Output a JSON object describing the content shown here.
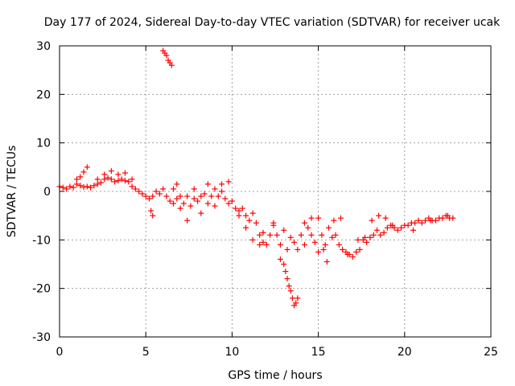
{
  "chart_data": {
    "type": "scatter",
    "title": "Day 177 of 2024, Sidereal Day-to-day VTEC variation (SDTVAR) for receiver ucak",
    "xlabel": "GPS time / hours",
    "ylabel": "SDTVAR / TECUs",
    "xlim": [
      0,
      25
    ],
    "ylim": [
      -30,
      30
    ],
    "xticks": [
      0,
      5,
      10,
      15,
      20,
      25
    ],
    "yticks": [
      -30,
      -20,
      -10,
      0,
      10,
      20,
      30
    ],
    "grid": true,
    "marker": "+",
    "color": "#ff0000",
    "series": [
      {
        "name": "SDTVAR",
        "x": [
          0.0,
          0.2,
          0.4,
          0.6,
          0.8,
          1.0,
          1.2,
          1.4,
          1.6,
          1.8,
          2.0,
          2.2,
          2.4,
          2.6,
          2.8,
          3.0,
          3.2,
          3.4,
          3.6,
          3.8,
          4.0,
          4.2,
          4.4,
          4.6,
          4.8,
          5.0,
          5.2,
          5.4,
          5.6,
          5.8,
          6.0,
          6.2,
          6.4,
          6.6,
          6.8,
          7.0,
          7.2,
          7.4,
          7.6,
          7.8,
          8.0,
          8.2,
          8.4,
          8.6,
          8.8,
          9.0,
          9.2,
          9.4,
          9.6,
          9.8,
          10.0,
          10.2,
          10.4,
          10.6,
          10.8,
          11.0,
          11.2,
          11.4,
          11.6,
          11.8,
          12.0,
          12.2,
          12.4,
          12.6,
          12.8,
          13.0,
          13.2,
          13.4,
          13.6,
          13.8,
          14.0,
          14.2,
          14.4,
          14.6,
          14.8,
          15.0,
          15.2,
          15.4,
          15.6,
          15.8,
          16.0,
          16.2,
          16.4,
          16.6,
          16.8,
          17.0,
          17.2,
          17.4,
          17.6,
          17.8,
          18.0,
          18.2,
          18.4,
          18.6,
          18.8,
          19.0,
          19.2,
          19.4,
          19.6,
          19.8,
          20.0,
          20.2,
          20.4,
          20.6,
          20.8,
          21.0,
          21.2,
          21.4,
          21.6,
          21.8,
          22.0,
          22.2,
          22.4,
          22.6,
          22.8,
          1.0,
          1.2,
          1.4,
          1.6,
          2.2,
          2.6,
          3.0,
          3.4,
          3.8,
          4.2,
          6.0,
          6.1,
          6.2,
          6.3,
          6.4,
          6.5,
          5.3,
          5.4,
          6.6,
          6.8,
          7.0,
          7.4,
          7.8,
          8.2,
          8.6,
          9.0,
          9.4,
          9.8,
          10.4,
          10.8,
          11.2,
          11.6,
          11.8,
          12.4,
          12.8,
          13.0,
          13.1,
          13.2,
          13.3,
          13.4,
          13.5,
          13.6,
          13.7,
          13.8,
          14.2,
          14.6,
          15.0,
          15.3,
          15.5,
          15.9,
          16.3,
          16.7,
          17.3,
          17.7,
          18.1,
          18.5,
          18.9,
          19.3,
          20.5,
          21.5,
          22.5
        ],
        "y": [
          1.0,
          0.8,
          0.5,
          1.0,
          0.8,
          1.5,
          1.2,
          0.9,
          1.0,
          0.8,
          1.2,
          1.5,
          1.8,
          2.5,
          2.8,
          2.5,
          2.0,
          2.2,
          2.5,
          2.2,
          2.0,
          1.0,
          0.5,
          0.0,
          -0.5,
          -1.0,
          -1.5,
          -1.0,
          0.0,
          -0.5,
          0.5,
          -1.0,
          -2.0,
          0.5,
          -1.5,
          -1.0,
          -2.5,
          -1.0,
          -3.0,
          -1.5,
          -2.0,
          -1.0,
          -0.5,
          -2.5,
          -1.0,
          0.5,
          -1.0,
          0.0,
          -1.5,
          -2.5,
          -2.0,
          -3.5,
          -4.0,
          -3.5,
          -5.0,
          -6.0,
          -4.5,
          -6.5,
          -9.0,
          -10.5,
          -11.0,
          -9.0,
          -7.0,
          -9.0,
          -11.0,
          -8.0,
          -12.0,
          -9.5,
          -10.5,
          -12.0,
          -9.0,
          -11.0,
          -7.5,
          -9.0,
          -10.5,
          -12.5,
          -9.0,
          -11.0,
          -7.5,
          -9.5,
          -9.0,
          -11.0,
          -12.0,
          -12.5,
          -13.0,
          -13.5,
          -12.5,
          -12.0,
          -10.0,
          -10.5,
          -9.5,
          -9.0,
          -8.0,
          -9.0,
          -8.5,
          -7.5,
          -7.0,
          -7.5,
          -8.0,
          -7.5,
          -7.0,
          -7.0,
          -6.5,
          -6.5,
          -6.0,
          -6.5,
          -6.0,
          -5.5,
          -6.0,
          -6.0,
          -5.5,
          -5.5,
          -5.0,
          -5.5,
          -5.5,
          2.5,
          3.0,
          4.0,
          5.0,
          2.5,
          3.5,
          4.2,
          3.5,
          3.8,
          2.5,
          29.0,
          28.5,
          28.0,
          27.0,
          26.5,
          26.0,
          -4.0,
          -5.0,
          -2.5,
          1.5,
          -3.5,
          -6.0,
          0.5,
          -4.5,
          1.5,
          -3.0,
          1.5,
          2.0,
          -5.0,
          -7.5,
          -10.0,
          -11.0,
          -8.5,
          -6.5,
          -14.0,
          -15.0,
          -16.5,
          -18.0,
          -19.5,
          -20.5,
          -22.0,
          -23.5,
          -23.0,
          -22.0,
          -6.5,
          -5.5,
          -5.5,
          -12.0,
          -14.5,
          -6.0,
          -5.5,
          -13.0,
          -10.0,
          -9.5,
          -6.0,
          -5.0,
          -5.5,
          -7.0,
          -8.0,
          -6.0,
          -5.0
        ]
      }
    ]
  }
}
